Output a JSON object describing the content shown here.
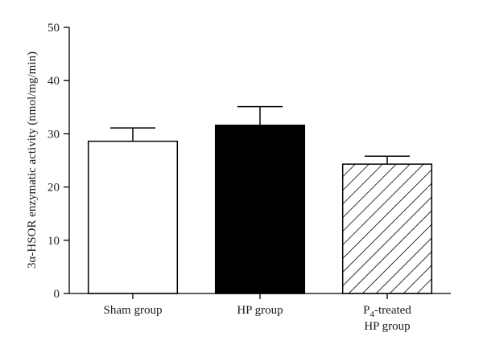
{
  "chart_data": {
    "type": "bar",
    "title": "",
    "xlabel": "",
    "ylabel": "3α-HSOR enzymatic activity (nmol/mg/min)",
    "ylim": [
      0,
      50
    ],
    "yticks": [
      "0",
      "10",
      "20",
      "30",
      "40",
      "50"
    ],
    "grid": false,
    "categories": [
      "Sham group",
      "HP group",
      "P4-treated HP group"
    ],
    "category_labels": [
      {
        "lines": [
          {
            "text": "Sham group"
          }
        ]
      },
      {
        "lines": [
          {
            "text": "HP group"
          }
        ]
      },
      {
        "lines": [
          {
            "text": "P",
            "sub": "4",
            "rest": "-treated"
          },
          {
            "text": "HP group"
          }
        ]
      }
    ],
    "values": [
      28.6,
      31.6,
      24.3
    ],
    "error_bars": [
      2.5,
      3.5,
      1.5
    ],
    "fills": [
      "white",
      "black",
      "hatched"
    ],
    "colors": {
      "outline": "#000000",
      "solid": "#000000",
      "background": "#ffffff"
    }
  }
}
